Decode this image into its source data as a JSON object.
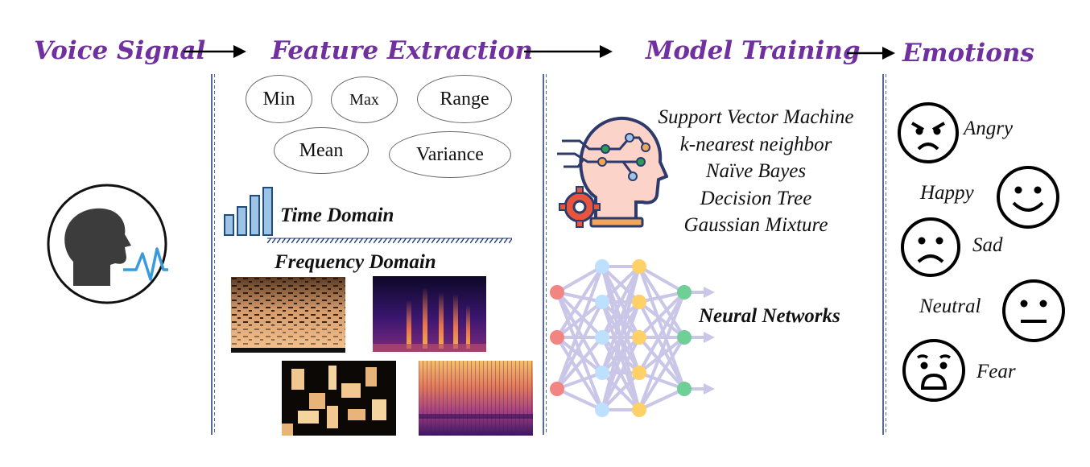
{
  "headers": {
    "voice_signal": "Voice Signal",
    "feature_extraction": "Feature Extraction",
    "model_training": "Model Training",
    "emotions": "Emotions"
  },
  "features": {
    "statistics": [
      "Min",
      "Max",
      "Range",
      "Mean",
      "Variance"
    ],
    "time_domain": "Time Domain",
    "frequency_domain": "Frequency Domain"
  },
  "models": {
    "classifiers": [
      "Support Vector Machine",
      "k-nearest neighbor",
      "Naïve Bayes",
      "Decision Tree",
      "Gaussian Mixture"
    ],
    "neural_networks": "Neural Networks"
  },
  "emotions": [
    "Angry",
    "Happy",
    "Sad",
    "Neutral",
    "Fear"
  ],
  "colors": {
    "header": "#7030a0",
    "divider": "#1f3b73",
    "bar_fill": "#9dc3e6",
    "bar_stroke": "#1f4e79",
    "nn_red": "#f28482",
    "nn_blue": "#bde0fe",
    "nn_yellow": "#ffd166",
    "nn_green": "#6fcf97",
    "nn_edge": "#c9c6e8"
  },
  "icons": [
    "speaking-head-icon",
    "ai-brain-gear-icon",
    "neural-network-icon",
    "bar-chart-icon",
    "emoji-face-icons"
  ]
}
